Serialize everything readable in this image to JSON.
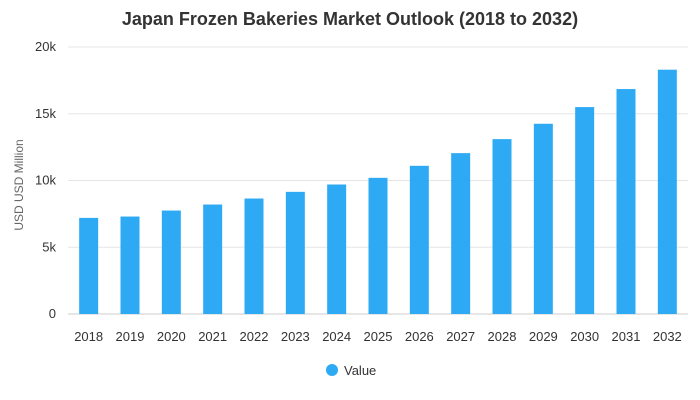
{
  "chart_data": {
    "type": "bar",
    "title": "Japan Frozen Bakeries Market Outlook (2018 to 2032)",
    "xlabel": "",
    "ylabel": "USD USD Million",
    "categories": [
      "2018",
      "2019",
      "2020",
      "2021",
      "2022",
      "2023",
      "2024",
      "2025",
      "2026",
      "2027",
      "2028",
      "2029",
      "2030",
      "2031",
      "2032"
    ],
    "series": [
      {
        "name": "Value",
        "color": "#2eaaf5",
        "values": [
          7200,
          7300,
          7750,
          8200,
          8650,
          9150,
          9700,
          10200,
          11100,
          12050,
          13100,
          14250,
          15500,
          16850,
          18300
        ]
      }
    ],
    "ylim": [
      0,
      20000
    ],
    "yticks": [
      {
        "value": 0,
        "label": "0"
      },
      {
        "value": 5000,
        "label": "5k"
      },
      {
        "value": 10000,
        "label": "10k"
      },
      {
        "value": 15000,
        "label": "15k"
      },
      {
        "value": 20000,
        "label": "20k"
      }
    ],
    "grid": true,
    "legend": "bottom-center"
  }
}
